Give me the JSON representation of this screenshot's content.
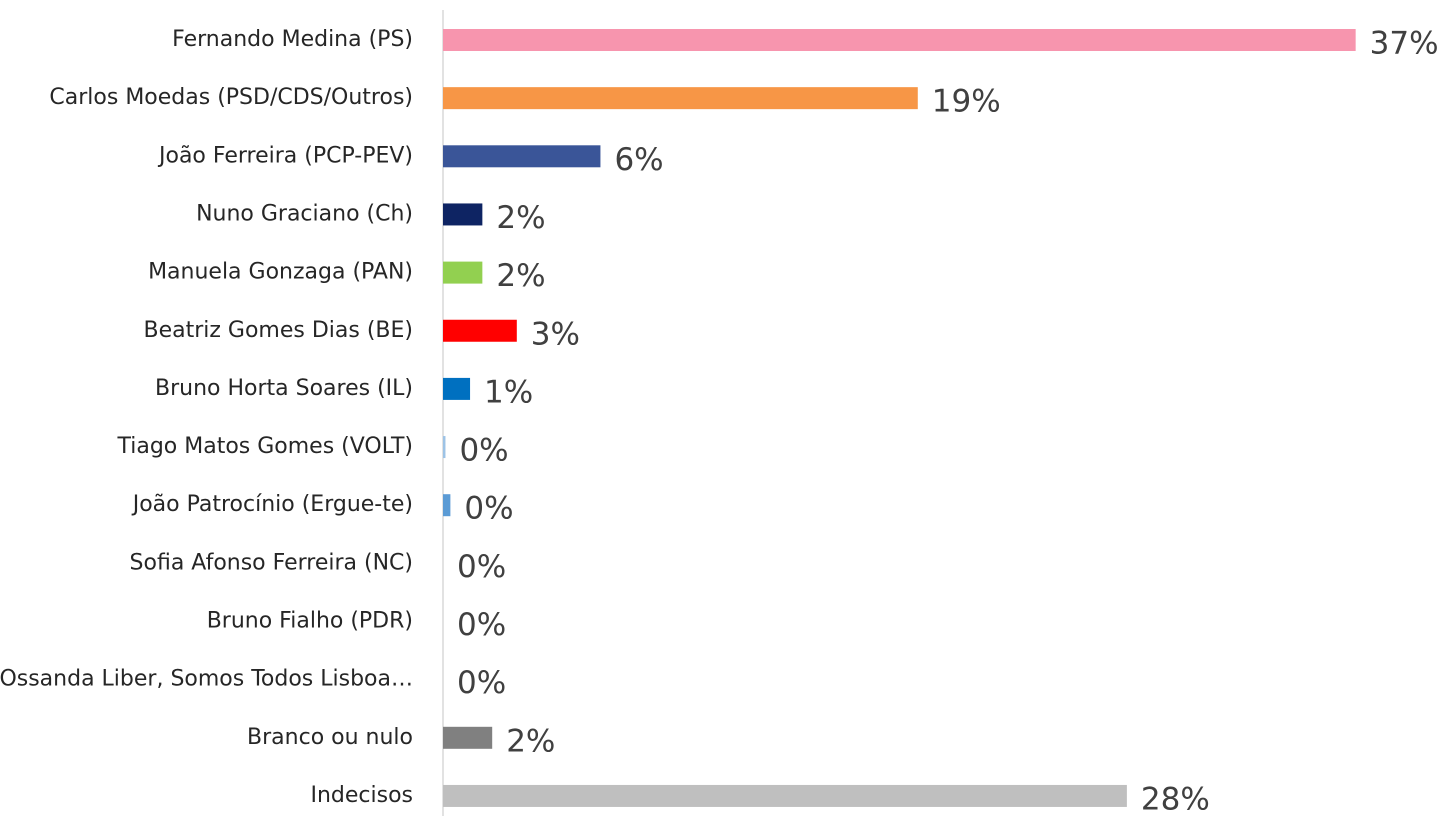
{
  "chart_data": {
    "type": "barh",
    "categories": [
      "Fernando Medina (PS)",
      "Carlos Moedas (PSD/CDS/Outros)",
      "João Ferreira (PCP-PEV)",
      "Nuno Graciano (Ch)",
      "Manuela Gonzaga (PAN)",
      "Beatriz Gomes Dias (BE)",
      "Bruno Horta Soares (IL)",
      "Tiago Matos Gomes (VOLT)",
      "João Patrocínio (Ergue-te)",
      "Sofia Afonso Ferreira (NC)",
      "Bruno Fialho (PDR)",
      "Ossanda Liber, Somos Todos Lisboa…",
      "Branco ou nulo",
      "Indecisos"
    ],
    "values": [
      37.1,
      19.3,
      6.4,
      1.6,
      1.6,
      3.0,
      1.1,
      0.1,
      0.3,
      0,
      0,
      0,
      2.0,
      27.8
    ],
    "value_labels": [
      "37%",
      "19%",
      "6%",
      "2%",
      "2%",
      "3%",
      "1%",
      "0%",
      "0%",
      "0%",
      "0%",
      "0%",
      "2%",
      "28%"
    ],
    "colors": [
      "#f795ae",
      "#f79646",
      "#3a5598",
      "#0e2463",
      "#92d050",
      "#ff0000",
      "#0070c0",
      "#9dc3e6",
      "#5b9bd5",
      "#5b9bd5",
      "#5b9bd5",
      "#5b9bd5",
      "#808080",
      "#bfbfbf"
    ],
    "xlim": [
      0,
      40
    ]
  }
}
